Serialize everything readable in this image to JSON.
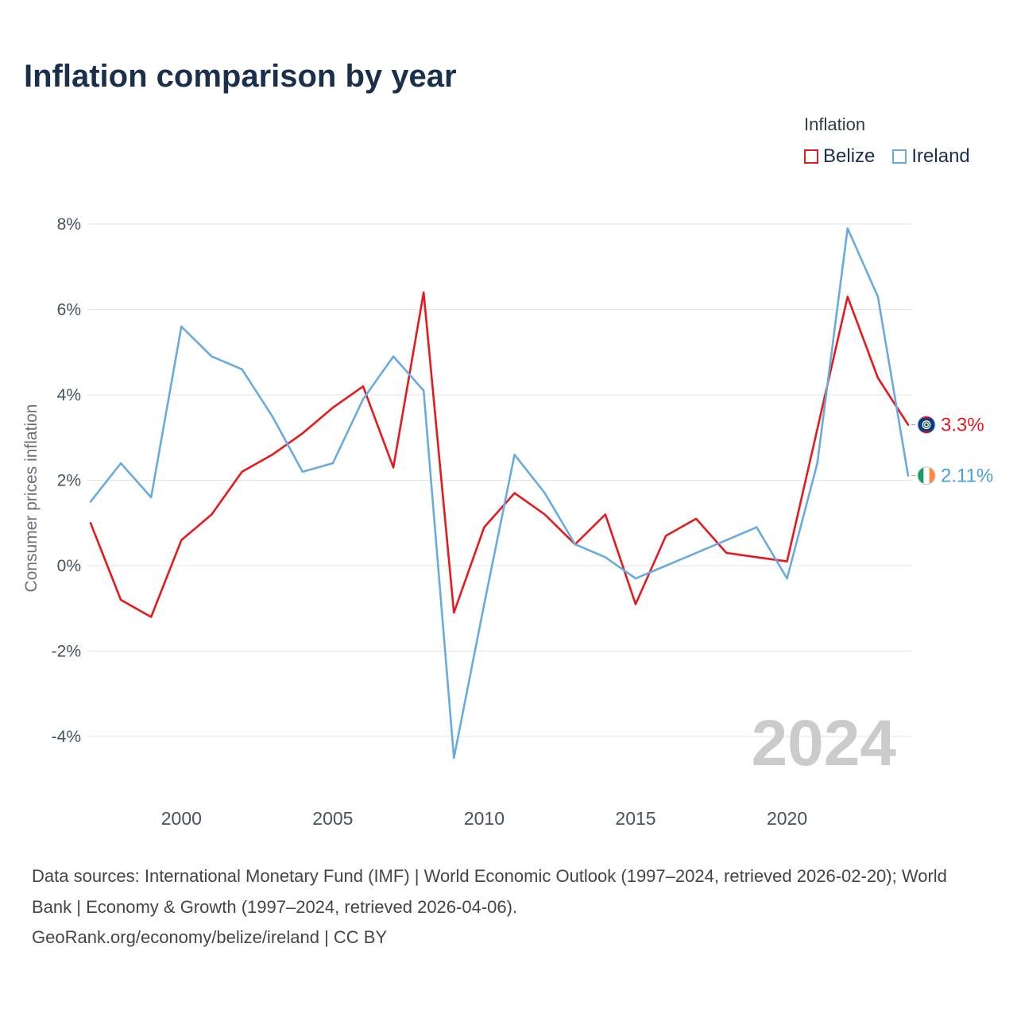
{
  "title": "Inflation comparison by year",
  "legend": {
    "title": "Inflation",
    "series": [
      {
        "label": "Belize",
        "color": "#e8191d"
      },
      {
        "label": "Ireland",
        "color": "#6aabdf"
      }
    ]
  },
  "y_axis": {
    "title": "Consumer prices inflation",
    "tick_labels": [
      "8%",
      "6%",
      "4%",
      "2%",
      "0%",
      "-2%",
      "-4%"
    ],
    "tick_values": [
      8,
      6,
      4,
      2,
      0,
      -2,
      -4
    ]
  },
  "x_axis": {
    "tick_values": [
      2000,
      2005,
      2010,
      2015,
      2020
    ]
  },
  "watermark": "2024",
  "end_labels": [
    {
      "series": "Belize",
      "text": "3.3%",
      "color": "#e8191d",
      "flag": "belize"
    },
    {
      "series": "Ireland",
      "text": "2.11%",
      "color": "#4d9fd9",
      "flag": "ireland"
    }
  ],
  "footer": {
    "sources": "Data sources: International Monetary Fund (IMF) | World Economic Outlook (1997–2024, retrieved 2026-02-20); World Bank | Economy & Growth (1997–2024, retrieved 2026-04-06).",
    "link": "GeoRank.org/economy/belize/ireland | CC BY"
  },
  "chart_data": {
    "type": "line",
    "title": "Inflation comparison by year",
    "xlabel": "",
    "ylabel": "Consumer prices inflation",
    "ylim": [
      -5,
      8.5
    ],
    "xlim": [
      1997,
      2024
    ],
    "grid": "horizontal-only",
    "legend_position": "top-right",
    "x": [
      1997,
      1998,
      1999,
      2000,
      2001,
      2002,
      2003,
      2004,
      2005,
      2006,
      2007,
      2008,
      2009,
      2010,
      2011,
      2012,
      2013,
      2014,
      2015,
      2016,
      2017,
      2018,
      2019,
      2020,
      2021,
      2022,
      2023,
      2024
    ],
    "series": [
      {
        "name": "Belize",
        "color": "#e8191d",
        "values": [
          1.0,
          -0.8,
          -1.2,
          0.6,
          1.2,
          2.2,
          2.6,
          3.1,
          3.7,
          4.2,
          2.3,
          6.4,
          -1.1,
          0.9,
          1.7,
          1.2,
          0.5,
          1.2,
          -0.9,
          0.7,
          1.1,
          0.3,
          0.2,
          0.1,
          3.2,
          6.3,
          4.4,
          3.3
        ]
      },
      {
        "name": "Ireland",
        "color": "#6aabdf",
        "values": [
          1.5,
          2.4,
          1.6,
          5.6,
          4.9,
          4.6,
          3.5,
          2.2,
          2.4,
          3.9,
          4.9,
          4.1,
          -4.5,
          -0.9,
          2.6,
          1.7,
          0.5,
          0.2,
          -0.3,
          0.0,
          0.3,
          0.6,
          0.9,
          -0.3,
          2.4,
          7.9,
          6.3,
          2.11
        ]
      }
    ]
  }
}
